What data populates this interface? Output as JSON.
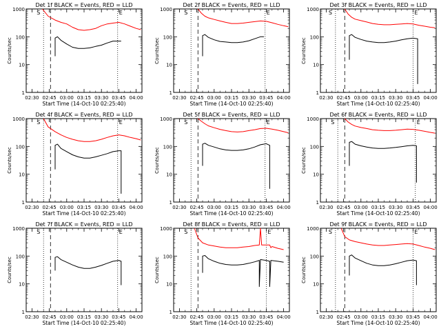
{
  "colors": {
    "events": "#000000",
    "lld": "#ff0000",
    "axis": "#000000",
    "background": "#ffffff"
  },
  "shared": {
    "xlabel": "Start Time (14-Oct-10 02:25:40)",
    "ylabel": "Counts/sec",
    "xtick_labels": [
      "02:30",
      "02:45",
      "03:00",
      "03:15",
      "03:30",
      "03:45",
      "04:00"
    ],
    "ytick_labels": [
      "1",
      "10",
      "100",
      "1000"
    ],
    "marker_S": "S",
    "marker_E": "E"
  },
  "chart_data": [
    {
      "type": "line",
      "title": "Det 1f BLACK = Events, RED = LLD",
      "xlabel": "Start Time (14-Oct-10 02:25:40)",
      "ylabel": "Counts/sec",
      "xlim": [
        "02:25",
        "04:05"
      ],
      "ylim": [
        1,
        1000
      ],
      "yscale": "log",
      "vlines": {
        "dotted": [
          "02:40",
          "03:44"
        ],
        "dashed": [
          "02:46"
        ]
      },
      "series": [
        {
          "color": "#ff0000",
          "x": [
            "02:39",
            "02:44",
            "02:50",
            "02:55",
            "03:00",
            "03:05",
            "03:10",
            "03:15",
            "03:20",
            "03:25",
            "03:30",
            "03:35",
            "03:40",
            "03:45",
            "03:50",
            "03:55",
            "04:00",
            "04:04"
          ],
          "values": [
            1000,
            550,
            400,
            330,
            290,
            220,
            180,
            170,
            180,
            200,
            250,
            290,
            310,
            330,
            290,
            240,
            200,
            180
          ]
        },
        {
          "color": "#000000",
          "x": [
            "02:50",
            "02:50",
            "02:52",
            "02:55",
            "03:00",
            "03:05",
            "03:10",
            "03:15",
            "03:20",
            "03:25",
            "03:30",
            "03:35",
            "03:40",
            "03:45",
            "03:47"
          ],
          "values": [
            20,
            90,
            100,
            75,
            55,
            42,
            38,
            38,
            40,
            45,
            50,
            60,
            70,
            70,
            70
          ]
        }
      ]
    },
    {
      "type": "line",
      "title": "Det 2f BLACK = Events, RED = LLD",
      "xlabel": "Start Time (14-Oct-10 02:25:40)",
      "ylabel": "Counts/sec",
      "xlim": [
        "02:25",
        "04:05"
      ],
      "ylim": [
        1,
        1000
      ],
      "yscale": "log",
      "vlines": {
        "dotted": [
          "02:40",
          "03:44"
        ],
        "dashed": [
          "02:46"
        ]
      },
      "series": [
        {
          "color": "#ff0000",
          "x": [
            "02:46",
            "02:49",
            "02:52",
            "02:55",
            "03:00",
            "03:05",
            "03:10",
            "03:15",
            "03:20",
            "03:25",
            "03:30",
            "03:35",
            "03:40",
            "03:45",
            "03:50",
            "03:55",
            "04:00",
            "04:04"
          ],
          "values": [
            1000,
            700,
            550,
            480,
            420,
            370,
            330,
            300,
            300,
            310,
            330,
            350,
            370,
            360,
            320,
            280,
            250,
            230
          ]
        },
        {
          "color": "#000000",
          "x": [
            "02:50",
            "02:50",
            "02:52",
            "02:55",
            "03:00",
            "03:05",
            "03:10",
            "03:15",
            "03:20",
            "03:25",
            "03:30",
            "03:35",
            "03:40",
            "03:43"
          ],
          "values": [
            20,
            110,
            120,
            95,
            78,
            68,
            65,
            62,
            62,
            65,
            72,
            85,
            100,
            100
          ]
        }
      ]
    },
    {
      "type": "line",
      "title": "Det 3f BLACK = Events, RED = LLD",
      "xlabel": "Start Time (14-Oct-10 02:25:40)",
      "ylabel": "Counts/sec",
      "xlim": [
        "02:25",
        "04:05"
      ],
      "ylim": [
        1,
        1000
      ],
      "yscale": "log",
      "vlines": {
        "dotted": [
          "02:38",
          "03:45"
        ],
        "dashed": [
          "02:46"
        ]
      },
      "series": [
        {
          "color": "#ff0000",
          "x": [
            "02:46",
            "02:49",
            "02:52",
            "02:55",
            "03:00",
            "03:05",
            "03:10",
            "03:15",
            "03:20",
            "03:25",
            "03:30",
            "03:35",
            "03:40",
            "03:45",
            "03:50",
            "03:55",
            "04:00",
            "04:04"
          ],
          "values": [
            1000,
            650,
            500,
            430,
            380,
            340,
            300,
            280,
            270,
            270,
            280,
            290,
            300,
            290,
            260,
            240,
            220,
            210
          ]
        },
        {
          "color": "#000000",
          "x": [
            "02:50",
            "02:50",
            "02:52",
            "02:55",
            "03:00",
            "03:05",
            "03:10",
            "03:15",
            "03:20",
            "03:25",
            "03:30",
            "03:35",
            "03:40",
            "03:45",
            "03:49",
            "03:49"
          ],
          "values": [
            15,
            110,
            120,
            95,
            80,
            70,
            65,
            62,
            62,
            65,
            70,
            78,
            85,
            90,
            85,
            2
          ]
        }
      ]
    },
    {
      "type": "line",
      "title": "Det 4f BLACK = Events, RED = LLD",
      "xlabel": "Start Time (14-Oct-10 02:25:40)",
      "ylabel": "Counts/sec",
      "xlim": [
        "02:25",
        "04:05"
      ],
      "ylim": [
        1,
        1000
      ],
      "yscale": "log",
      "vlines": {
        "dotted": [
          "02:40",
          "03:44"
        ],
        "dashed": [
          "02:46"
        ]
      },
      "series": [
        {
          "color": "#ff0000",
          "x": [
            "02:40",
            "02:44",
            "02:50",
            "02:55",
            "03:00",
            "03:05",
            "03:10",
            "03:15",
            "03:20",
            "03:25",
            "03:30",
            "03:35",
            "03:40",
            "03:45",
            "03:50",
            "03:55",
            "04:00",
            "04:04"
          ],
          "values": [
            1000,
            500,
            340,
            260,
            210,
            180,
            160,
            150,
            150,
            160,
            180,
            210,
            240,
            260,
            240,
            210,
            190,
            170
          ]
        },
        {
          "color": "#000000",
          "x": [
            "02:50",
            "02:50",
            "02:52",
            "02:55",
            "03:00",
            "03:05",
            "03:10",
            "03:15",
            "03:20",
            "03:25",
            "03:30",
            "03:35",
            "03:40",
            "03:45",
            "03:47",
            "03:47"
          ],
          "values": [
            15,
            110,
            120,
            85,
            65,
            50,
            42,
            38,
            38,
            42,
            48,
            55,
            65,
            70,
            70,
            2
          ]
        }
      ]
    },
    {
      "type": "line",
      "title": "Det 5f BLACK = Events, RED = LLD",
      "xlabel": "Start Time (14-Oct-10 02:25:40)",
      "ylabel": "Counts/sec",
      "xlim": [
        "02:25",
        "04:05"
      ],
      "ylim": [
        1,
        1000
      ],
      "yscale": "log",
      "vlines": {
        "dotted": [
          "02:40",
          "03:44"
        ],
        "dashed": [
          "02:46"
        ]
      },
      "series": [
        {
          "color": "#ff0000",
          "x": [
            "02:46",
            "02:49",
            "02:52",
            "02:55",
            "03:00",
            "03:05",
            "03:10",
            "03:15",
            "03:20",
            "03:25",
            "03:30",
            "03:35",
            "03:40",
            "03:45",
            "03:50",
            "03:55",
            "04:00",
            "04:04"
          ],
          "values": [
            1000,
            800,
            650,
            550,
            470,
            410,
            370,
            340,
            330,
            340,
            370,
            400,
            440,
            450,
            420,
            380,
            340,
            310
          ]
        },
        {
          "color": "#000000",
          "x": [
            "02:50",
            "02:50",
            "02:52",
            "02:55",
            "03:00",
            "03:05",
            "03:10",
            "03:15",
            "03:20",
            "03:25",
            "03:30",
            "03:35",
            "03:40",
            "03:45",
            "03:48",
            "03:48"
          ],
          "values": [
            20,
            120,
            130,
            110,
            95,
            82,
            75,
            72,
            72,
            75,
            82,
            95,
            115,
            125,
            110,
            3
          ]
        }
      ]
    },
    {
      "type": "line",
      "title": "Det 6f BLACK = Events, RED = LLD",
      "xlabel": "Start Time (14-Oct-10 02:25:40)",
      "ylabel": "Counts/sec",
      "xlim": [
        "02:25",
        "04:05"
      ],
      "ylim": [
        1,
        1000
      ],
      "yscale": "log",
      "vlines": {
        "dotted": [
          "02:40",
          "03:47"
        ],
        "dashed": [
          "02:46"
        ]
      },
      "series": [
        {
          "color": "#ff0000",
          "x": [
            "02:46",
            "02:49",
            "02:52",
            "02:55",
            "03:00",
            "03:05",
            "03:10",
            "03:15",
            "03:20",
            "03:25",
            "03:30",
            "03:35",
            "03:40",
            "03:45",
            "03:50",
            "03:55",
            "04:00",
            "04:04"
          ],
          "values": [
            1000,
            750,
            620,
            540,
            480,
            440,
            400,
            380,
            370,
            370,
            380,
            400,
            420,
            410,
            380,
            350,
            320,
            300
          ]
        },
        {
          "color": "#000000",
          "x": [
            "02:50",
            "02:50",
            "02:52",
            "02:55",
            "03:00",
            "03:05",
            "03:10",
            "03:15",
            "03:20",
            "03:25",
            "03:30",
            "03:35",
            "03:40",
            "03:45",
            "03:48",
            "03:48"
          ],
          "values": [
            20,
            140,
            150,
            120,
            105,
            95,
            88,
            85,
            85,
            88,
            92,
            98,
            105,
            110,
            105,
            5
          ]
        }
      ]
    },
    {
      "type": "line",
      "title": "Det 7f BLACK = Events, RED = LLD",
      "xlabel": "Start Time (14-Oct-10 02:25:40)",
      "ylabel": "Counts/sec",
      "xlim": [
        "02:25",
        "04:05"
      ],
      "ylim": [
        1,
        1000
      ],
      "yscale": "log",
      "vlines": {
        "dotted": [
          "02:40",
          "03:44"
        ],
        "dashed": [
          "02:46"
        ]
      },
      "series": [
        {
          "color": "#000000",
          "x": [
            "02:50",
            "02:50",
            "02:52",
            "02:55",
            "03:00",
            "03:05",
            "03:10",
            "03:15",
            "03:20",
            "03:25",
            "03:30",
            "03:35",
            "03:40",
            "03:45",
            "03:47",
            "03:47"
          ],
          "values": [
            30,
            90,
            95,
            75,
            60,
            48,
            40,
            36,
            36,
            40,
            46,
            55,
            65,
            70,
            65,
            9
          ]
        }
      ]
    },
    {
      "type": "line",
      "title": "Det 8f BLACK = Events, RED = LLD",
      "xlabel": "Start Time (14-Oct-10 02:25:40)",
      "ylabel": "Counts/sec",
      "xlim": [
        "02:25",
        "04:05"
      ],
      "ylim": [
        1,
        1000
      ],
      "yscale": "log",
      "vlines": {
        "dotted": [
          "02:40",
          "03:45"
        ],
        "dashed": [
          "02:46"
        ]
      },
      "series": [
        {
          "color": "#ff0000",
          "x": [
            "02:43",
            "02:46",
            "02:50",
            "02:55",
            "03:00",
            "03:05",
            "03:10",
            "03:15",
            "03:20",
            "03:25",
            "03:30",
            "03:35",
            "03:39",
            "03:40",
            "03:41",
            "03:42",
            "03:45",
            "03:48",
            "03:49",
            "03:50",
            "03:55",
            "04:00"
          ],
          "values": [
            1000,
            450,
            300,
            250,
            230,
            210,
            200,
            200,
            200,
            210,
            220,
            240,
            250,
            1000,
            250,
            250,
            250,
            250,
            200,
            220,
            190,
            170
          ]
        },
        {
          "color": "#000000",
          "x": [
            "02:50",
            "02:50",
            "02:52",
            "02:55",
            "03:00",
            "03:05",
            "03:10",
            "03:15",
            "03:20",
            "03:25",
            "03:30",
            "03:35",
            "03:39",
            "03:39",
            "03:40",
            "03:45",
            "03:48",
            "03:48",
            "03:49",
            "03:55",
            "04:00"
          ],
          "values": [
            25,
            100,
            105,
            80,
            65,
            55,
            50,
            48,
            48,
            50,
            55,
            62,
            70,
            8,
            75,
            70,
            65,
            8,
            70,
            65,
            60
          ]
        }
      ]
    },
    {
      "type": "line",
      "title": "Det 9f BLACK = Events, RED = LLD",
      "xlabel": "Start Time (14-Oct-10 02:25:40)",
      "ylabel": "Counts/sec",
      "xlim": [
        "02:25",
        "04:05"
      ],
      "ylim": [
        1,
        1000
      ],
      "yscale": "log",
      "vlines": {
        "dotted": [
          "02:38",
          "03:45"
        ],
        "dashed": [
          "02:46"
        ]
      },
      "series": [
        {
          "color": "#ff0000",
          "x": [
            "02:43",
            "02:46",
            "02:50",
            "02:55",
            "03:00",
            "03:05",
            "03:10",
            "03:15",
            "03:20",
            "03:25",
            "03:30",
            "03:35",
            "03:40",
            "03:45",
            "03:50",
            "03:55",
            "04:00",
            "04:04"
          ],
          "values": [
            1000,
            500,
            380,
            330,
            300,
            270,
            250,
            240,
            240,
            250,
            260,
            270,
            280,
            270,
            240,
            210,
            190,
            170
          ]
        },
        {
          "color": "#000000",
          "x": [
            "02:50",
            "02:50",
            "02:52",
            "02:55",
            "03:00",
            "03:05",
            "03:10",
            "03:15",
            "03:20",
            "03:25",
            "03:30",
            "03:35",
            "03:40",
            "03:45",
            "03:48",
            "03:48"
          ],
          "values": [
            20,
            100,
            110,
            85,
            68,
            55,
            48,
            45,
            45,
            48,
            53,
            60,
            68,
            72,
            68,
            9
          ]
        }
      ]
    }
  ]
}
